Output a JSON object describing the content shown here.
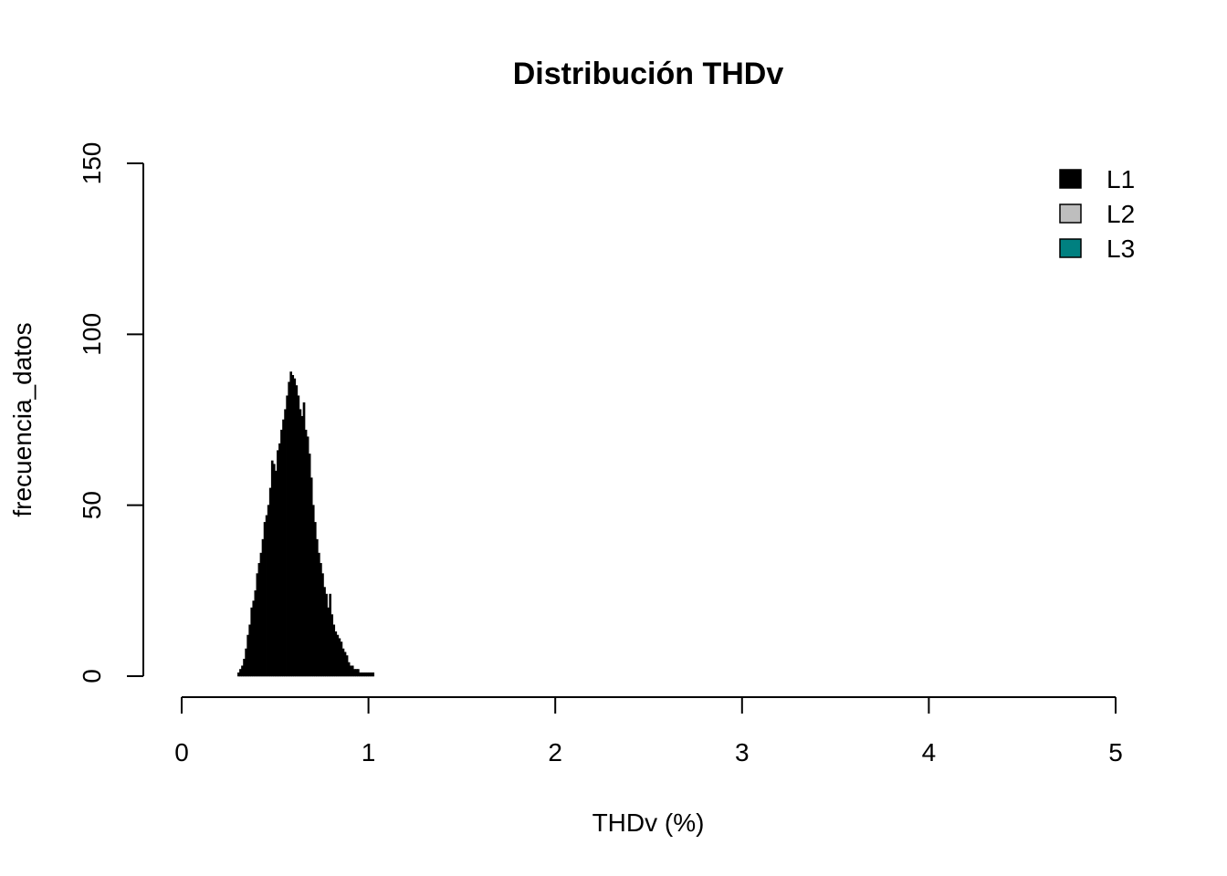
{
  "chart_data": {
    "type": "bar",
    "title": "Distribución THDv",
    "xlabel": "THDv (%)",
    "ylabel": "frecuencia_datos",
    "xlim": [
      0,
      5
    ],
    "ylim": [
      0,
      150
    ],
    "x_ticks": [
      "0",
      "1",
      "2",
      "3",
      "4",
      "5"
    ],
    "y_ticks": [
      "0",
      "50",
      "100",
      "150"
    ],
    "grid": false,
    "legend_position": "top-right",
    "bin_width": 0.01,
    "series": [
      {
        "name": "L1",
        "color": "#000000",
        "bin_start": 0.3,
        "values": [
          1,
          2,
          3,
          5,
          8,
          12,
          15,
          20,
          22,
          25,
          30,
          33,
          36,
          40,
          45,
          47,
          50,
          55,
          63,
          62,
          60,
          66,
          68,
          72,
          75,
          78,
          82,
          86,
          89,
          88,
          87,
          85,
          82,
          78,
          76,
          80,
          72,
          70,
          65,
          58,
          50,
          45,
          40,
          36,
          33,
          30,
          26,
          24,
          20,
          24,
          18,
          15,
          13,
          12,
          11,
          10,
          8,
          7,
          6,
          4,
          3,
          3,
          2,
          2,
          2,
          1,
          1,
          1,
          1,
          1,
          1,
          1,
          1
        ]
      },
      {
        "name": "L2",
        "color": "#bebebe",
        "bin_start": 0.3,
        "values": []
      },
      {
        "name": "L3",
        "color": "#008080",
        "bin_start": 0.3,
        "values": []
      }
    ]
  }
}
